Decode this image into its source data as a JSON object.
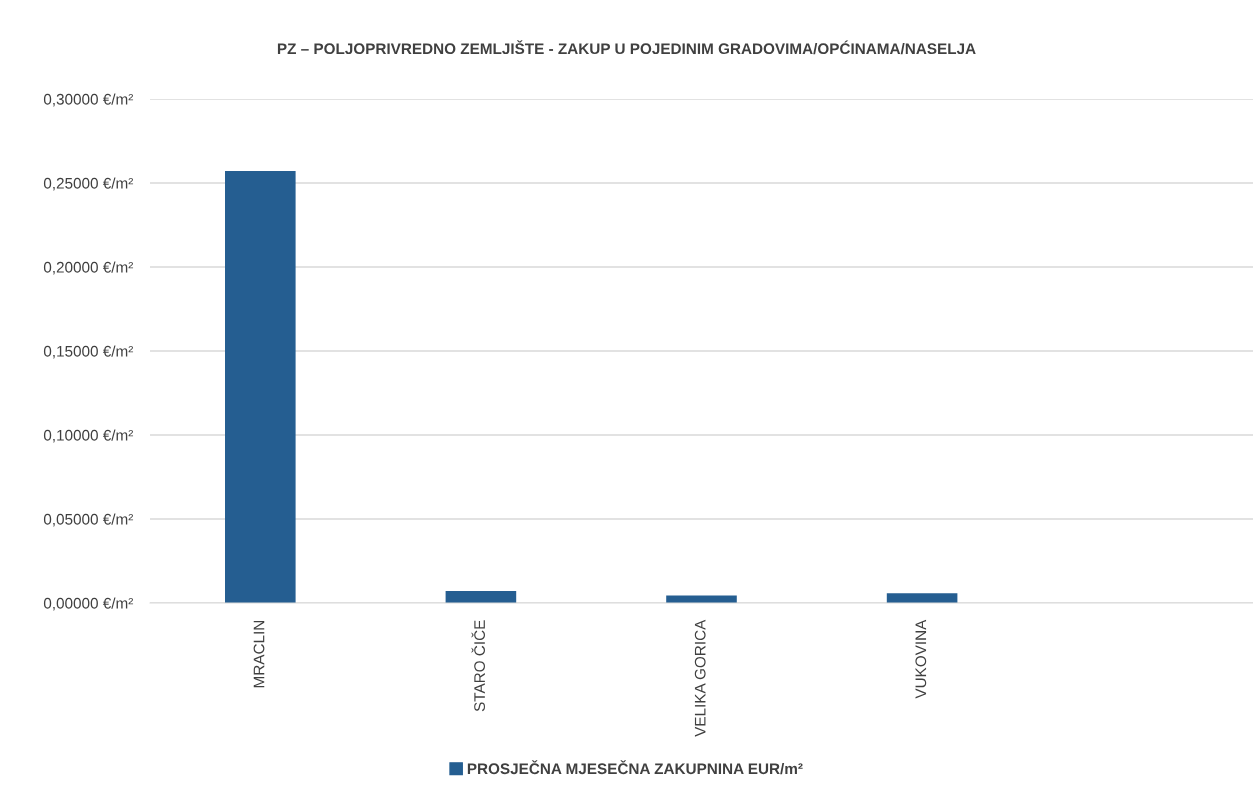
{
  "chart_data": {
    "type": "bar",
    "title": "PZ – POLJOPRIVREDNO ZEMLJIŠTE - ZAKUP U POJEDINIM GRADOVIMA/OPĆINAMA/NASELJA",
    "categories": [
      "MRACLIN",
      "STARO ČIČE",
      "VELIKA GORICA",
      "VUKOVINA",
      null
    ],
    "series": [
      {
        "name": "PROSJEČNA MJESEČNA ZAKUPNINA EUR/m²",
        "color": "#255e91",
        "values": [
          0.2571,
          0.0071,
          0.0045,
          0.0058,
          null
        ]
      }
    ],
    "ylim": [
      0,
      0.3
    ],
    "yticks": [
      {
        "value": 0,
        "label": "0,00000 €/m²"
      },
      {
        "value": 0.05,
        "label": "0,05000 €/m²"
      },
      {
        "value": 0.1,
        "label": "0,10000 €/m²"
      },
      {
        "value": 0.15,
        "label": "0,15000 €/m²"
      },
      {
        "value": 0.2,
        "label": "0,20000 €/m²"
      },
      {
        "value": 0.25,
        "label": "0,25000 €/m²"
      },
      {
        "value": 0.3,
        "label": "0,30000 €/m²"
      }
    ],
    "grid": "y",
    "legend": "bottom"
  }
}
